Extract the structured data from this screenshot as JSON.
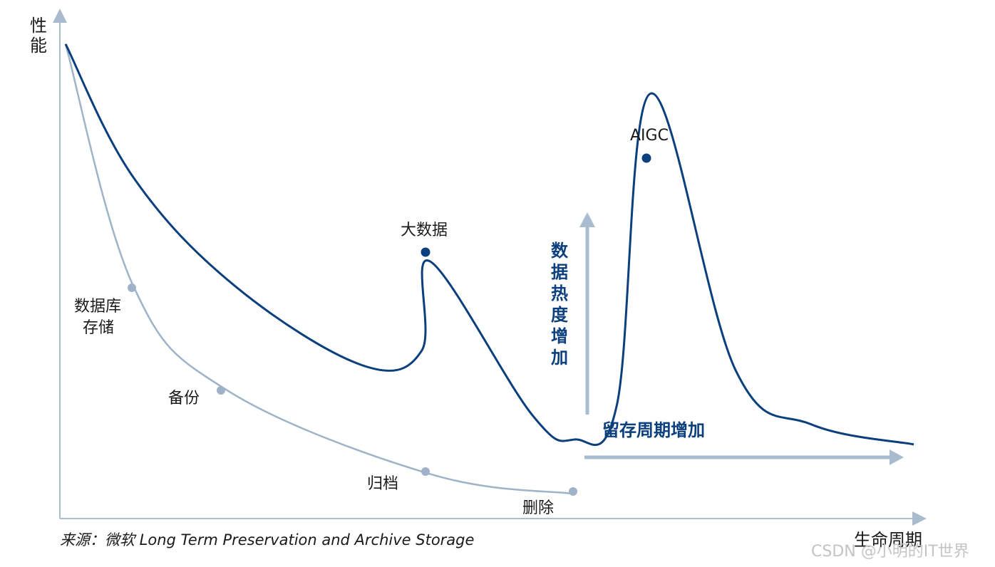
{
  "chart_data": {
    "type": "line",
    "title": "",
    "xlabel": "生命周期",
    "ylabel": "性能",
    "grid": false,
    "legend": "none",
    "series": [
      {
        "color": "#0b3f7d",
        "points": [
          {
            "x": 0.0,
            "y": 0.96
          },
          {
            "x": 0.08,
            "y": 0.69
          },
          {
            "x": 0.2,
            "y": 0.47
          },
          {
            "x": 0.35,
            "y": 0.31
          },
          {
            "x": 0.42,
            "y": 0.34
          },
          {
            "x": 0.43,
            "y": 0.52,
            "label": "大数据"
          },
          {
            "x": 0.55,
            "y": 0.21
          },
          {
            "x": 0.6,
            "y": 0.16
          },
          {
            "x": 0.65,
            "y": 0.23
          },
          {
            "x": 0.69,
            "y": 0.86,
            "label": "AIGC"
          },
          {
            "x": 0.79,
            "y": 0.3
          },
          {
            "x": 0.88,
            "y": 0.19
          },
          {
            "x": 1.0,
            "y": 0.15
          }
        ]
      },
      {
        "color": "#9fb3c8",
        "points": [
          {
            "x": 0.0,
            "y": 0.96
          },
          {
            "x": 0.08,
            "y": 0.47,
            "label": "数据库\n存储"
          },
          {
            "x": 0.19,
            "y": 0.26,
            "label": "备份"
          },
          {
            "x": 0.43,
            "y": 0.09,
            "label": "归档"
          },
          {
            "x": 0.6,
            "y": 0.05,
            "label": "删除"
          }
        ]
      }
    ],
    "annotations": [
      {
        "text": "数据热度增加",
        "direction": "up"
      },
      {
        "text": "留存周期增加",
        "direction": "right"
      }
    ],
    "labels": {
      "data_heat": "数据热度增加",
      "retention": "留存周期增加",
      "bigdata": "大数据",
      "aigc": "AIGC",
      "db1": "数据库",
      "db2": "存储",
      "backup": "备份",
      "archive": "归档",
      "delete": "删除"
    }
  },
  "source": "来源：微软 Long Term Preservation and Archive Storage",
  "watermark": "CSDN @小明的IT世界",
  "colors": {
    "main": "#0b3f7d",
    "secondary": "#9fb3c8",
    "axis": "#a9bccf"
  }
}
